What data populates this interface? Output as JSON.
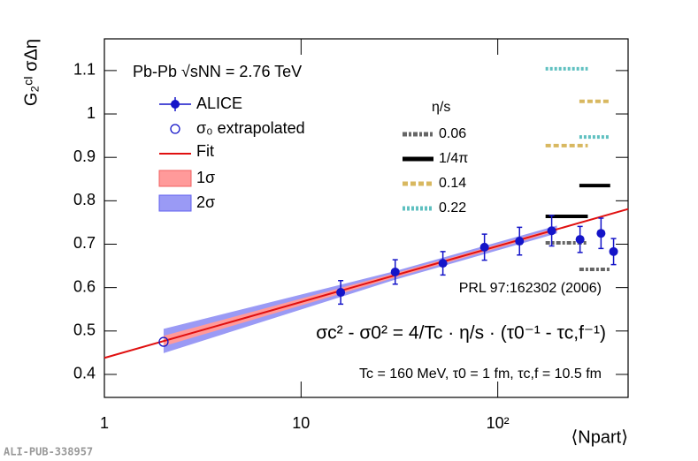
{
  "chart_data": {
    "type": "scatter",
    "x_label": "⟨Npart⟩",
    "y_label": "G₂ᶜᴵ σΔη",
    "annotations": [
      "Pb-Pb √sNN = 2.76 TeV",
      "PRL 97:162302 (2006)",
      "σc² - σ0² = 4/Tc · η/s · (τ0⁻¹ - τc,f⁻¹)",
      "Tc = 160 MeV, τ0 = 1 fm, τc,f = 10.5 fm"
    ],
    "watermark": "ALI-PUB-338957",
    "log_x": true,
    "xlim": [
      1,
      460
    ],
    "xticks": [
      1,
      10,
      {
        "value": 100,
        "label": "10²"
      }
    ],
    "ylim": [
      0.347,
      1.173
    ],
    "yticks": [
      0.4,
      0.5,
      0.6,
      0.7,
      0.8,
      0.9,
      1,
      1.1
    ],
    "series": [
      {
        "name": "ALICE",
        "color": "#1414c8",
        "x": [
          15.9,
          30.1,
          52.6,
          85.6,
          129,
          188,
          262,
          335,
          388
        ],
        "values": [
          0.589,
          0.636,
          0.656,
          0.693,
          0.707,
          0.731,
          0.711,
          0.725,
          0.683
        ],
        "errors": [
          0.027,
          0.028,
          0.027,
          0.03,
          0.032,
          0.035,
          0.03,
          0.035,
          0.03
        ]
      },
      {
        "name": "σ₀ extrapolated",
        "color": "#1414c8",
        "x": [
          2.0
        ],
        "values": [
          0.475
        ]
      }
    ],
    "fit": {
      "name": "Fit",
      "color": "#e01010",
      "x": [
        1,
        460
      ],
      "values": [
        0.438,
        0.781
      ]
    },
    "bands": [
      {
        "name": "2σ",
        "color": "#9a9af5",
        "x": [
          2,
          30,
          200
        ],
        "lower": [
          0.449,
          0.618,
          0.725
        ],
        "upper": [
          0.505,
          0.638,
          0.743
        ]
      },
      {
        "name": "1σ",
        "color": "#ff9a9a",
        "x": [
          2,
          30,
          200
        ],
        "lower": [
          0.465,
          0.623,
          0.73
        ],
        "upper": [
          0.489,
          0.633,
          0.738
        ]
      }
    ],
    "model_title": "η/s",
    "model_x_ranges": [
      [
        175,
        287
      ],
      [
        260,
        373
      ]
    ],
    "models": [
      {
        "name": "0.06",
        "color": "#666666",
        "dash": "5,2,3,2",
        "values": [
          0.703,
          0.642
        ]
      },
      {
        "name": "1/4π",
        "color": "#000000",
        "dash": "",
        "values": [
          0.764,
          0.835
        ]
      },
      {
        "name": "0.14",
        "color": "#d8b860",
        "dash": "6,3",
        "values": [
          0.927,
          1.029
        ]
      },
      {
        "name": "0.22",
        "color": "#5fc0c0",
        "dash": "3,2",
        "values": [
          1.104,
          0.947
        ]
      }
    ]
  }
}
